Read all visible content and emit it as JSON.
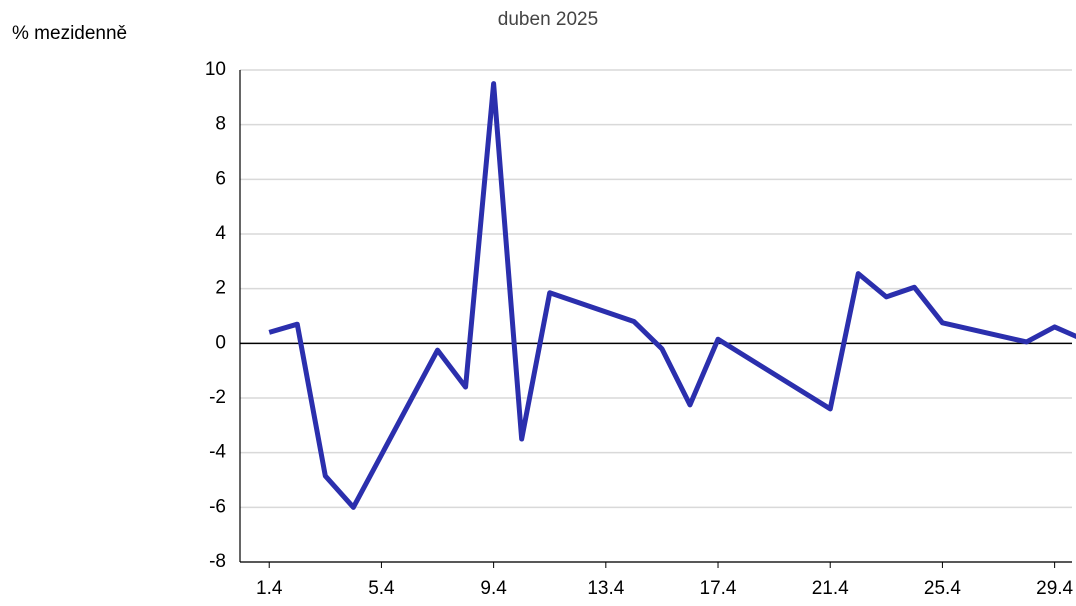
{
  "chart_data": {
    "type": "line",
    "title": "duben 2025",
    "y_label": "% mezidenně",
    "x": [
      "1.4",
      "2.4",
      "3.4",
      "4.4",
      "7.4",
      "8.4",
      "9.4",
      "10.4",
      "11.4",
      "14.4",
      "15.4",
      "16.4",
      "17.4",
      "21.4",
      "22.4",
      "23.4",
      "24.4",
      "25.4",
      "28.4",
      "29.4",
      "30.4"
    ],
    "series": [
      {
        "name": "duben 2025",
        "color": "#2b2fad",
        "values": [
          0.4,
          0.7,
          -4.85,
          -6.0,
          -0.25,
          -1.6,
          9.5,
          -3.5,
          1.85,
          0.8,
          -0.2,
          -2.25,
          0.15,
          -2.4,
          2.55,
          1.7,
          2.05,
          0.75,
          0.05,
          0.6,
          0.15
        ]
      }
    ],
    "xticks": [
      "1.4",
      "5.4",
      "9.4",
      "13.4",
      "17.4",
      "21.4",
      "25.4",
      "29.4"
    ],
    "ylim": [
      -8,
      10
    ],
    "yticks": [
      -8,
      -6,
      -4,
      -2,
      0,
      2,
      4,
      6,
      8,
      10
    ],
    "grid": true
  }
}
